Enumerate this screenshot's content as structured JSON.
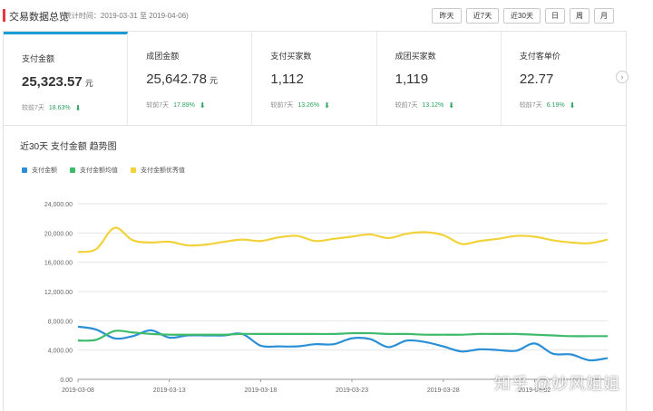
{
  "header": {
    "title": "交易数据总览",
    "subtitle": "( 统计时间：2019-03-31 至 2019-04-06)",
    "ranges": [
      {
        "label": "昨天",
        "active": false
      },
      {
        "label": "近7天",
        "active": true
      },
      {
        "label": "近30天",
        "active": false
      },
      {
        "label": "日",
        "active": false
      },
      {
        "label": "周",
        "active": false
      },
      {
        "label": "月",
        "active": false
      }
    ]
  },
  "cards": [
    {
      "label": "支付金额",
      "value": "25,323.57",
      "unit": "元",
      "compare": "较前7天",
      "pct": "18.63%",
      "active": true
    },
    {
      "label": "成团金额",
      "value": "25,642.78",
      "unit": "元",
      "compare": "较前7天",
      "pct": "17.89%",
      "active": false
    },
    {
      "label": "支付买家数",
      "value": "1,112",
      "unit": "",
      "compare": "较前7天",
      "pct": "13.26%",
      "active": false
    },
    {
      "label": "成团买家数",
      "value": "1,119",
      "unit": "",
      "compare": "较前7天",
      "pct": "13.12%",
      "active": false
    },
    {
      "label": "支付客单价",
      "value": "22.77",
      "unit": "",
      "compare": "较前7天",
      "pct": "6.19%",
      "active": false
    }
  ],
  "chart_title": "近30天 支付金额 趋势图",
  "watermark": "知乎 @妙风姐姐",
  "colors": {
    "accent": "#1a9bd8",
    "down": "#2ca25f",
    "series_blue": "#2a8fd6",
    "series_green": "#3dbb6a",
    "series_yellow": "#f2d23a"
  },
  "chart_data": {
    "type": "line",
    "title": "",
    "xlabel": "",
    "ylabel": "",
    "ylim": [
      0,
      24000
    ],
    "yticks": [
      "0.00",
      "4,000.00",
      "8,000.00",
      "12,000.00",
      "16,000.00",
      "20,000.00",
      "24,000.00"
    ],
    "ytick_values": [
      0,
      4000,
      8000,
      12000,
      16000,
      20000,
      24000
    ],
    "xtick_labels": [
      "2019-03-08",
      "2019-03-13",
      "2019-03-18",
      "2019-03-23",
      "2019-03-28",
      "2019-04-02"
    ],
    "xtick_index": [
      0,
      5,
      10,
      15,
      20,
      25
    ],
    "grid": true,
    "legend_position": "top-left",
    "series": [
      {
        "name": "支付金额",
        "color": "#2a8fd6",
        "values": [
          7200,
          6800,
          5600,
          5900,
          6700,
          5700,
          6000,
          6000,
          6000,
          6200,
          4600,
          4500,
          4500,
          4800,
          4800,
          5600,
          5500,
          4400,
          5300,
          5100,
          4500,
          3800,
          4100,
          4000,
          3900,
          4900,
          3500,
          3400,
          2600,
          2900
        ]
      },
      {
        "name": "支付金额均值",
        "color": "#3dbb6a",
        "values": [
          5300,
          5400,
          6600,
          6400,
          6200,
          6100,
          6100,
          6100,
          6100,
          6200,
          6200,
          6200,
          6200,
          6200,
          6200,
          6300,
          6300,
          6200,
          6200,
          6100,
          6100,
          6100,
          6200,
          6200,
          6200,
          6100,
          6000,
          5900,
          5900,
          5900
        ]
      },
      {
        "name": "支付金额优秀值",
        "color": "#f2d23a",
        "values": [
          17400,
          17800,
          20700,
          19000,
          18700,
          18800,
          18300,
          18400,
          18800,
          19100,
          18900,
          19400,
          19600,
          18900,
          19200,
          19500,
          19800,
          19300,
          19900,
          20100,
          19700,
          18500,
          18900,
          19200,
          19600,
          19500,
          19000,
          18700,
          18600,
          19100
        ]
      }
    ]
  }
}
